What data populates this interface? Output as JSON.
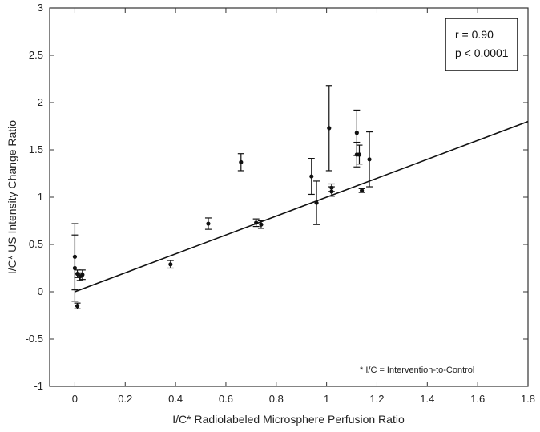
{
  "chart_data": {
    "type": "scatter",
    "xlabel": "I/C* Radiolabeled Microsphere Perfusion Ratio",
    "ylabel": "I/C* US Intensity Change Ratio",
    "xlim": [
      -0.1,
      1.8
    ],
    "ylim": [
      -1,
      3
    ],
    "x_ticks": [
      "0",
      "0.2",
      "0.4",
      "0.6",
      "0.8",
      "1",
      "1.2",
      "1.4",
      "1.6",
      "1.8"
    ],
    "y_ticks": [
      "3",
      "2.5",
      "2",
      "1.5",
      "1",
      "0.5",
      "0",
      "-0.5",
      "-1"
    ],
    "grid": false,
    "stats": {
      "r": "r = 0.90",
      "p": "p < 0.0001"
    },
    "footnote": "* I/C = Intervention-to-Control",
    "points": [
      {
        "x": 0.0,
        "y": 0.37,
        "err": 0.35
      },
      {
        "x": 0.0,
        "y": 0.25,
        "err": 0.35
      },
      {
        "x": 0.01,
        "y": -0.15,
        "err": 0.03
      },
      {
        "x": 0.01,
        "y": 0.19,
        "err": 0.04
      },
      {
        "x": 0.02,
        "y": 0.16,
        "err": 0.04
      },
      {
        "x": 0.03,
        "y": 0.18,
        "err": 0.05
      },
      {
        "x": 0.38,
        "y": 0.29,
        "err": 0.04
      },
      {
        "x": 0.53,
        "y": 0.72,
        "err": 0.06
      },
      {
        "x": 0.66,
        "y": 1.37,
        "err": 0.09
      },
      {
        "x": 0.72,
        "y": 0.73,
        "err": 0.04
      },
      {
        "x": 0.74,
        "y": 0.71,
        "err": 0.04
      },
      {
        "x": 0.94,
        "y": 1.22,
        "err": 0.19
      },
      {
        "x": 0.96,
        "y": 0.94,
        "err": 0.23
      },
      {
        "x": 1.01,
        "y": 1.73,
        "err": 0.45
      },
      {
        "x": 1.02,
        "y": 1.06,
        "err": 0.05
      },
      {
        "x": 1.02,
        "y": 1.1,
        "err": 0.04
      },
      {
        "x": 1.12,
        "y": 1.45,
        "err": 0.13
      },
      {
        "x": 1.12,
        "y": 1.68,
        "err": 0.24
      },
      {
        "x": 1.13,
        "y": 1.45,
        "err": 0.1
      },
      {
        "x": 1.14,
        "y": 1.07,
        "err": 0.02
      },
      {
        "x": 1.17,
        "y": 1.4,
        "err": 0.29
      }
    ],
    "regression": {
      "slope": 1.0,
      "intercept": 0.0
    }
  }
}
